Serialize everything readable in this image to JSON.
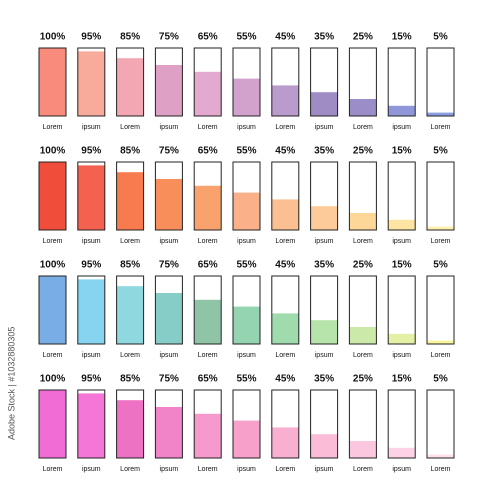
{
  "watermark": "Adobe Stock | #1032880305",
  "chart_data": [
    {
      "type": "bar",
      "categories": [
        "Lorem",
        "ipsum",
        "Lorem",
        "ipsum",
        "Lorem",
        "ipsum",
        "Lorem",
        "ipsum",
        "Lorem",
        "ipsum",
        "Lorem"
      ],
      "values": [
        100,
        95,
        85,
        75,
        65,
        55,
        45,
        35,
        25,
        15,
        5
      ],
      "value_labels": [
        "100%",
        "95%",
        "85%",
        "75%",
        "65%",
        "55%",
        "45%",
        "35%",
        "25%",
        "15%",
        "5%"
      ],
      "colors": [
        "#f98b7c",
        "#f8ab9a",
        "#f3a7b3",
        "#dea0c4",
        "#e3a9cf",
        "#d3a2cc",
        "#b99ccc",
        "#a08cc4",
        "#9b8ec8",
        "#8f97d8",
        "#8b9de0"
      ],
      "ylim": [
        0,
        100
      ]
    },
    {
      "type": "bar",
      "categories": [
        "Lorem",
        "ipsum",
        "Lorem",
        "ipsum",
        "Lorem",
        "ipsum",
        "Lorem",
        "ipsum",
        "Lorem",
        "ipsum",
        "Lorem"
      ],
      "values": [
        100,
        95,
        85,
        75,
        65,
        55,
        45,
        35,
        25,
        15,
        5
      ],
      "value_labels": [
        "100%",
        "95%",
        "85%",
        "75%",
        "65%",
        "55%",
        "45%",
        "35%",
        "25%",
        "15%",
        "5%"
      ],
      "colors": [
        "#f04d3b",
        "#f4624f",
        "#f87a4f",
        "#f88f5a",
        "#f9a26e",
        "#fab088",
        "#fbc092",
        "#fccb99",
        "#fdd798",
        "#fde4a3",
        "#fdf0b0"
      ],
      "ylim": [
        0,
        100
      ]
    },
    {
      "type": "bar",
      "categories": [
        "Lorem",
        "ipsum",
        "Lorem",
        "ipsum",
        "Lorem",
        "ipsum",
        "Lorem",
        "ipsum",
        "Lorem",
        "ipsum",
        "Lorem"
      ],
      "values": [
        100,
        95,
        85,
        75,
        65,
        55,
        45,
        35,
        25,
        15,
        5
      ],
      "value_labels": [
        "100%",
        "95%",
        "85%",
        "75%",
        "65%",
        "55%",
        "45%",
        "35%",
        "25%",
        "15%",
        "5%"
      ],
      "colors": [
        "#78ade6",
        "#86d4f0",
        "#8fd8e0",
        "#86cdc8",
        "#8fc4a6",
        "#94d4b0",
        "#9fdbad",
        "#b7e4aa",
        "#cbeaaa",
        "#e3f0a6",
        "#f8f59a"
      ],
      "ylim": [
        0,
        100
      ]
    },
    {
      "type": "bar",
      "categories": [
        "Lorem",
        "ipsum",
        "Lorem",
        "ipsum",
        "Lorem",
        "ipsum",
        "Lorem",
        "ipsum",
        "Lorem",
        "ipsum",
        "Lorem"
      ],
      "values": [
        100,
        95,
        85,
        75,
        65,
        55,
        45,
        35,
        25,
        15,
        5
      ],
      "value_labels": [
        "100%",
        "95%",
        "85%",
        "75%",
        "65%",
        "55%",
        "45%",
        "35%",
        "25%",
        "15%",
        "5%"
      ],
      "colors": [
        "#f26cd5",
        "#f476d6",
        "#ee72c4",
        "#f184c8",
        "#f69acd",
        "#f7a1ca",
        "#f9b0d0",
        "#fbbcd8",
        "#fbc7df",
        "#fcd3e6",
        "#fce0ec"
      ],
      "ylim": [
        0,
        100
      ]
    }
  ]
}
